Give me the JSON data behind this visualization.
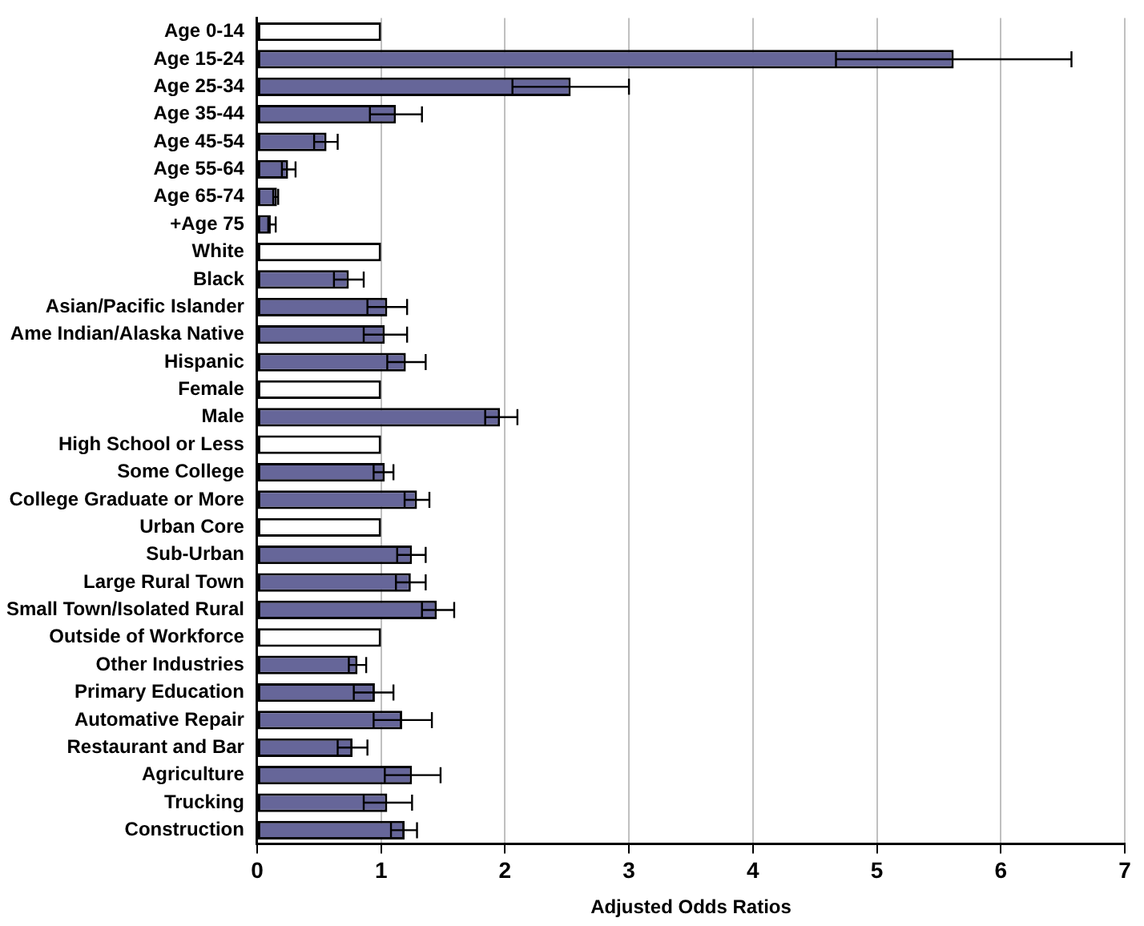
{
  "chart_data": {
    "type": "bar",
    "orientation": "horizontal",
    "xlabel": "Adjusted Odds Ratios",
    "categories": [
      "Age 0-14",
      "Age 15-24",
      "Age 25-34",
      "Age 35-44",
      "Age 45-54",
      "Age 55-64",
      "Age 65-74",
      "+Age 75",
      "White",
      "Black",
      "Asian/Pacific Islander",
      "Ame Indian/Alaska Native",
      "Hispanic",
      "Female",
      "Male",
      "High School or Less",
      "Some College",
      "College Graduate or More",
      "Urban Core",
      "Sub-Urban",
      "Large Rural Town",
      "Small Town/Isolated Rural",
      "Outside of Workforce",
      "Other Industries",
      "Primary Education",
      "Automative Repair",
      "Restaurant and Bar",
      "Agriculture",
      "Trucking",
      "Construction"
    ],
    "values": [
      1,
      5.62,
      2.53,
      1.12,
      0.56,
      0.25,
      0.16,
      0.11,
      1,
      0.74,
      1.05,
      1.03,
      1.2,
      1,
      1.96,
      1,
      1.03,
      1.29,
      1,
      1.25,
      1.24,
      1.45,
      1,
      0.81,
      0.95,
      1.17,
      0.77,
      1.25,
      1.05,
      1.19
    ],
    "errors": [
      null,
      [
        4.67,
        6.57
      ],
      [
        2.06,
        3.0
      ],
      [
        0.91,
        1.33
      ],
      [
        0.46,
        0.65
      ],
      [
        0.2,
        0.31
      ],
      [
        0.13,
        0.17
      ],
      [
        0.09,
        0.15
      ],
      null,
      [
        0.62,
        0.86
      ],
      [
        0.89,
        1.21
      ],
      [
        0.86,
        1.21
      ],
      [
        1.05,
        1.36
      ],
      null,
      [
        1.84,
        2.1
      ],
      null,
      [
        0.94,
        1.1
      ],
      [
        1.19,
        1.39
      ],
      null,
      [
        1.13,
        1.36
      ],
      [
        1.12,
        1.36
      ],
      [
        1.33,
        1.59
      ],
      null,
      [
        0.74,
        0.88
      ],
      [
        0.78,
        1.1
      ],
      [
        0.94,
        1.41
      ],
      [
        0.65,
        0.89
      ],
      [
        1.03,
        1.48
      ],
      [
        0.86,
        1.25
      ],
      [
        1.08,
        1.29
      ]
    ],
    "colors": [
      "#ffffff",
      "#666699",
      "#666699",
      "#666699",
      "#666699",
      "#666699",
      "#666699",
      "#666699",
      "#ffffff",
      "#666699",
      "#666699",
      "#666699",
      "#666699",
      "#ffffff",
      "#666699",
      "#ffffff",
      "#666699",
      "#666699",
      "#ffffff",
      "#666699",
      "#666699",
      "#666699",
      "#ffffff",
      "#666699",
      "#666699",
      "#666699",
      "#666699",
      "#666699",
      "#666699",
      "#666699"
    ],
    "xlim": [
      0,
      7
    ],
    "xticks": [
      0,
      1,
      2,
      3,
      4,
      5,
      6,
      7
    ],
    "grid": "x",
    "legend": false
  }
}
